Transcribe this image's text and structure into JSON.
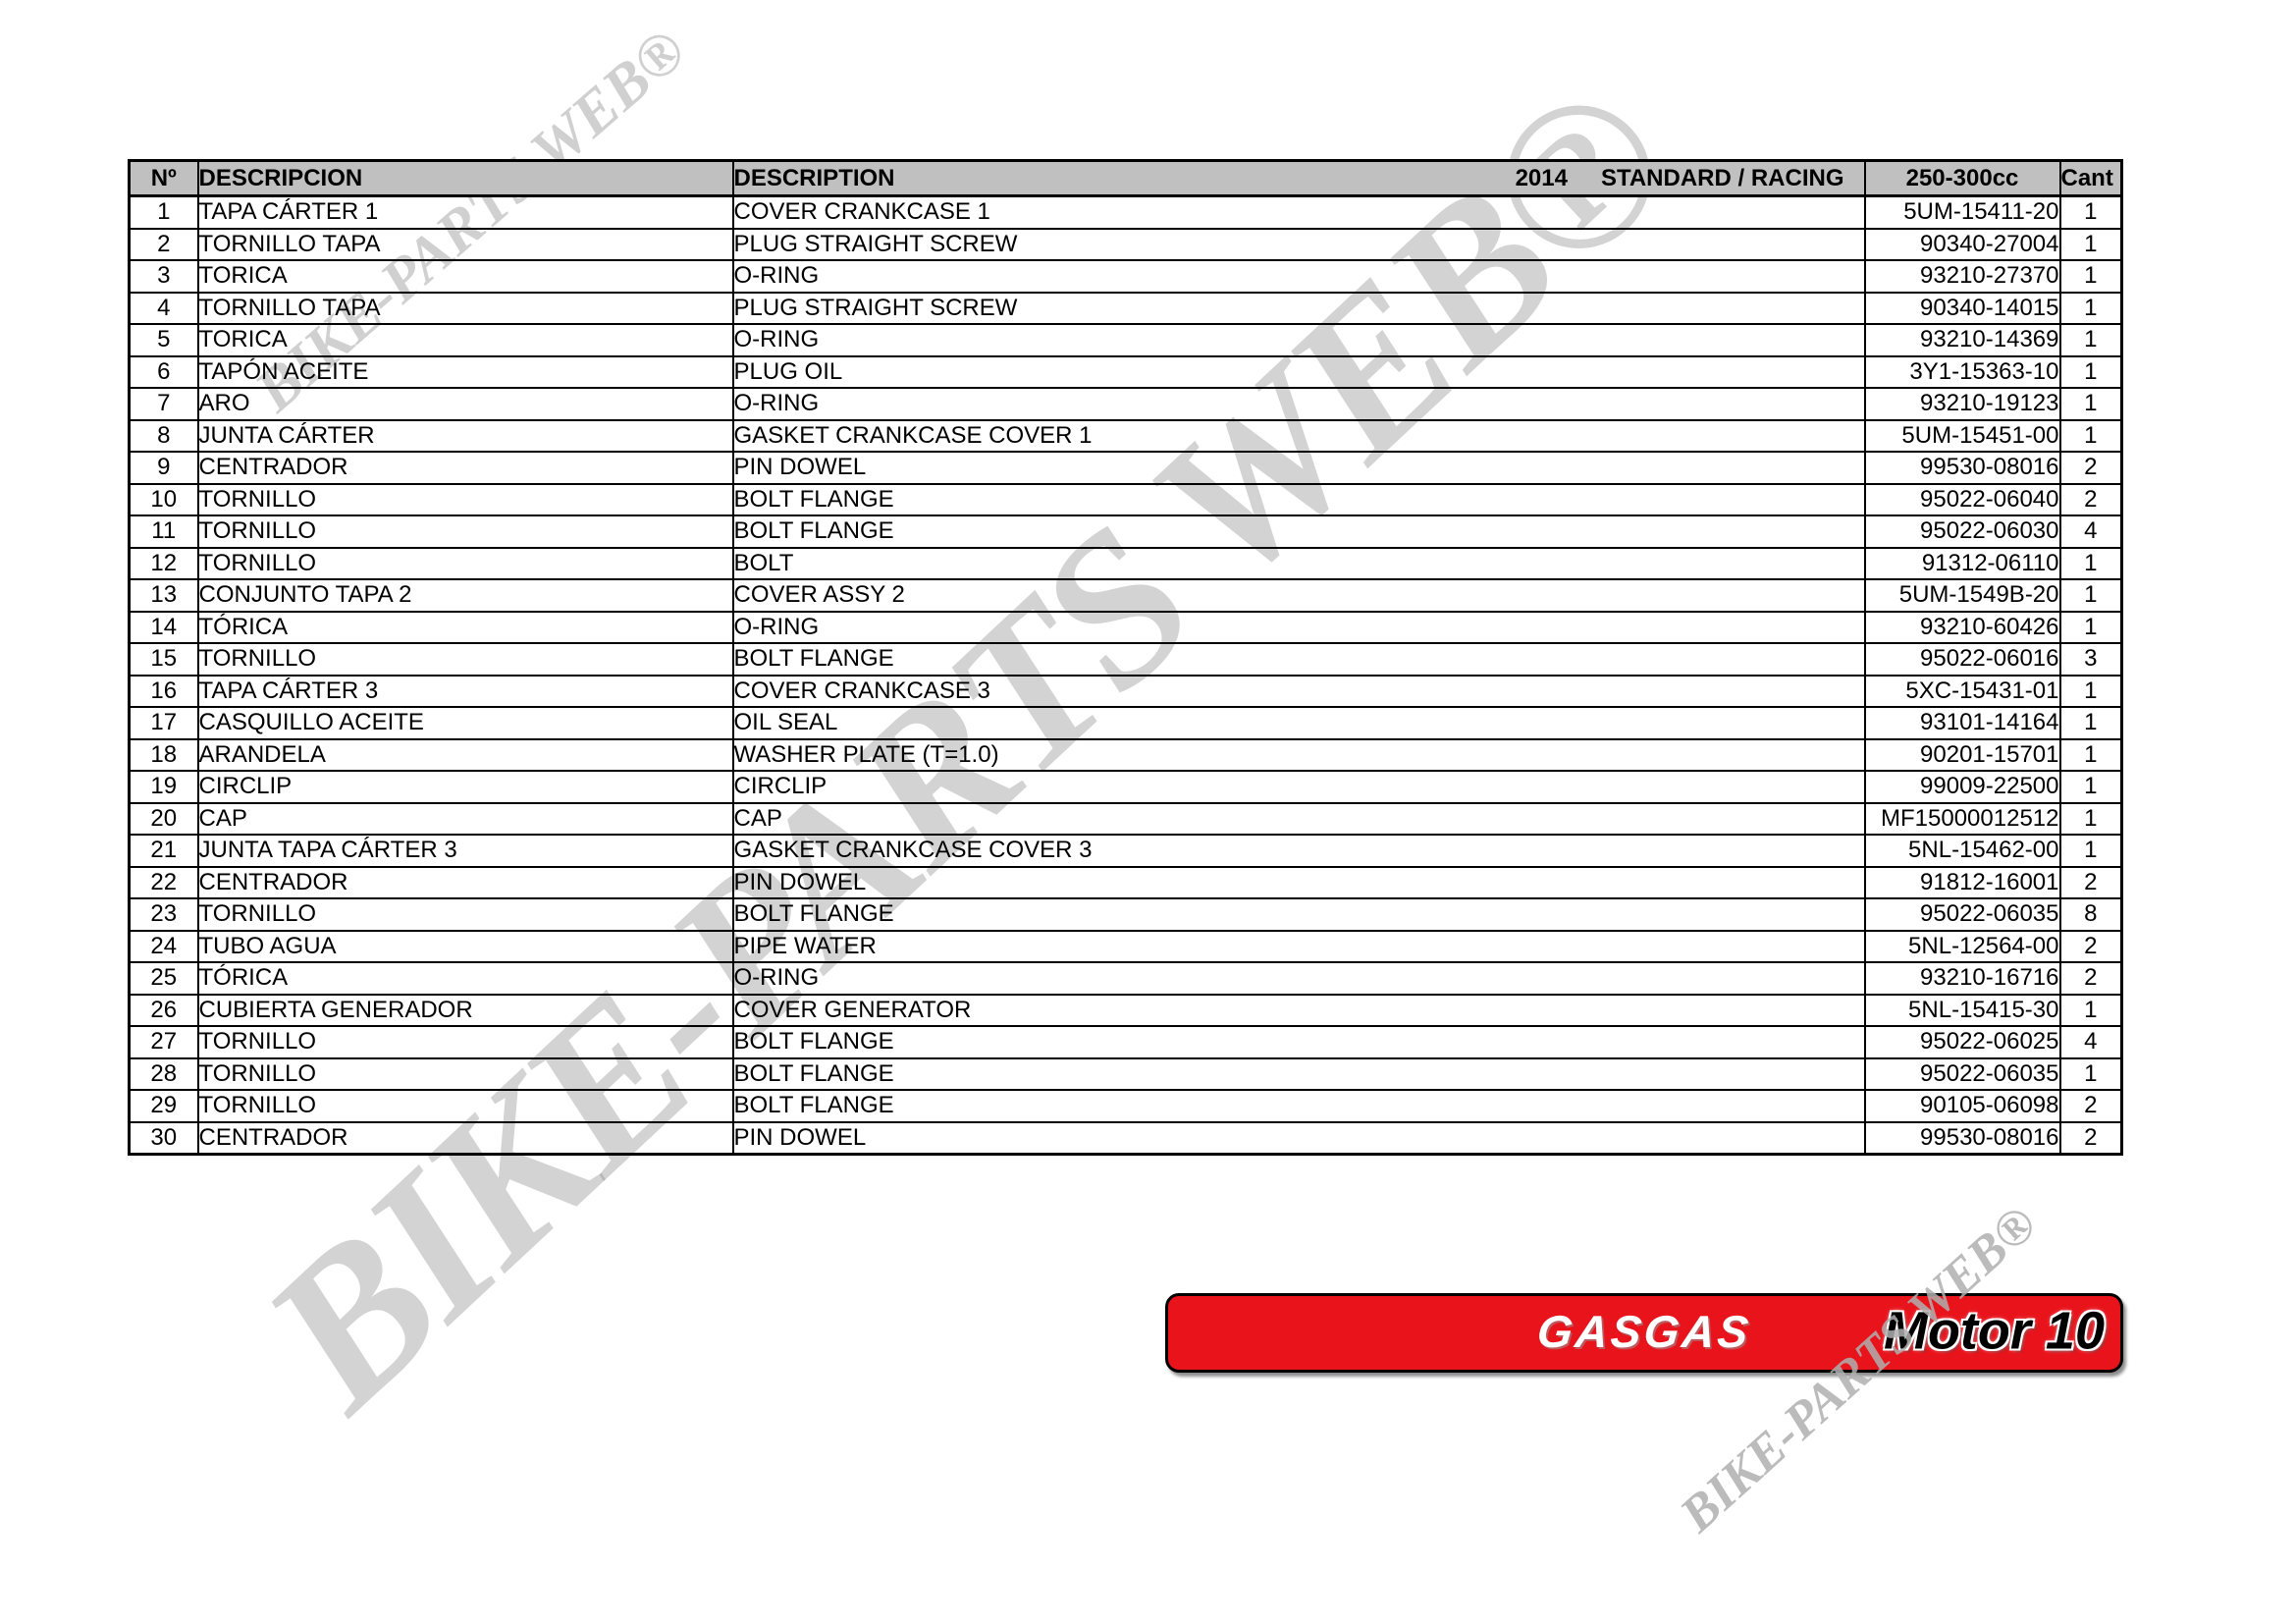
{
  "watermark": {
    "text": "BIKE-PARTS WEB®",
    "color_hex": "#c8c8c8"
  },
  "banner": {
    "brand": "GASGAS",
    "model": "Motor 10",
    "background_hex": "#e8131b",
    "brand_color_hex": "#ffffff",
    "model_color_hex": "#000000"
  },
  "table": {
    "headers": {
      "num": "Nº",
      "descripcion": "DESCRIPCION",
      "description": "DESCRIPTION",
      "year": "2014",
      "variant": "STANDARD / RACING",
      "cc": "250-300cc",
      "qty": "Cant"
    },
    "rows": [
      {
        "num": "1",
        "descripcion": "TAPA CÁRTER 1",
        "description": "COVER CRANKCASE 1",
        "part": "5UM-15411-20",
        "qty": "1"
      },
      {
        "num": "2",
        "descripcion": "TORNILLO TAPA",
        "description": "PLUG STRAIGHT SCREW",
        "part": "90340-27004",
        "qty": "1"
      },
      {
        "num": "3",
        "descripcion": "TORICA",
        "description": "O-RING",
        "part": "93210-27370",
        "qty": "1"
      },
      {
        "num": "4",
        "descripcion": "TORNILLO TAPA",
        "description": "PLUG STRAIGHT SCREW",
        "part": "90340-14015",
        "qty": "1"
      },
      {
        "num": "5",
        "descripcion": "TORICA",
        "description": "O-RING",
        "part": "93210-14369",
        "qty": "1"
      },
      {
        "num": "6",
        "descripcion": "TAPÓN ACEITE",
        "description": "PLUG OIL",
        "part": "3Y1-15363-10",
        "qty": "1"
      },
      {
        "num": "7",
        "descripcion": "ARO",
        "description": "O-RING",
        "part": "93210-19123",
        "qty": "1"
      },
      {
        "num": "8",
        "descripcion": "JUNTA CÁRTER",
        "description": "GASKET CRANKCASE COVER 1",
        "part": "5UM-15451-00",
        "qty": "1"
      },
      {
        "num": "9",
        "descripcion": "CENTRADOR",
        "description": "PIN DOWEL",
        "part": "99530-08016",
        "qty": "2"
      },
      {
        "num": "10",
        "descripcion": "TORNILLO",
        "description": "BOLT FLANGE",
        "part": "95022-06040",
        "qty": "2"
      },
      {
        "num": "11",
        "descripcion": "TORNILLO",
        "description": "BOLT FLANGE",
        "part": "95022-06030",
        "qty": "4"
      },
      {
        "num": "12",
        "descripcion": "TORNILLO",
        "description": "BOLT",
        "part": "91312-06110",
        "qty": "1"
      },
      {
        "num": "13",
        "descripcion": "CONJUNTO TAPA 2",
        "description": "COVER ASSY 2",
        "part": "5UM-1549B-20",
        "qty": "1"
      },
      {
        "num": "14",
        "descripcion": "TÓRICA",
        "description": "O-RING",
        "part": "93210-60426",
        "qty": "1"
      },
      {
        "num": "15",
        "descripcion": "TORNILLO",
        "description": "BOLT FLANGE",
        "part": "95022-06016",
        "qty": "3"
      },
      {
        "num": "16",
        "descripcion": "TAPA CÁRTER 3",
        "description": "COVER CRANKCASE 3",
        "part": "5XC-15431-01",
        "qty": "1"
      },
      {
        "num": "17",
        "descripcion": "CASQUILLO ACEITE",
        "description": "OIL SEAL",
        "part": "93101-14164",
        "qty": "1"
      },
      {
        "num": "18",
        "descripcion": "ARANDELA",
        "description": "WASHER PLATE (T=1.0)",
        "part": "90201-15701",
        "qty": "1"
      },
      {
        "num": "19",
        "descripcion": "CIRCLIP",
        "description": "CIRCLIP",
        "part": "99009-22500",
        "qty": "1"
      },
      {
        "num": "20",
        "descripcion": "CAP",
        "description": "CAP",
        "part": "MF15000012512",
        "qty": "1"
      },
      {
        "num": "21",
        "descripcion": "JUNTA TAPA CÁRTER 3",
        "description": "GASKET CRANKCASE COVER 3",
        "part": "5NL-15462-00",
        "qty": "1"
      },
      {
        "num": "22",
        "descripcion": "CENTRADOR",
        "description": "PIN DOWEL",
        "part": "91812-16001",
        "qty": "2"
      },
      {
        "num": "23",
        "descripcion": "TORNILLO",
        "description": "BOLT FLANGE",
        "part": "95022-06035",
        "qty": "8"
      },
      {
        "num": "24",
        "descripcion": "TUBO AGUA",
        "description": "PIPE WATER",
        "part": "5NL-12564-00",
        "qty": "2"
      },
      {
        "num": "25",
        "descripcion": "TÓRICA",
        "description": "O-RING",
        "part": "93210-16716",
        "qty": "2"
      },
      {
        "num": "26",
        "descripcion": "CUBIERTA GENERADOR",
        "description": "COVER GENERATOR",
        "part": "5NL-15415-30",
        "qty": "1"
      },
      {
        "num": "27",
        "descripcion": "TORNILLO",
        "description": "BOLT FLANGE",
        "part": "95022-06025",
        "qty": "4"
      },
      {
        "num": "28",
        "descripcion": "TORNILLO",
        "description": "BOLT FLANGE",
        "part": "95022-06035",
        "qty": "1"
      },
      {
        "num": "29",
        "descripcion": "TORNILLO",
        "description": "BOLT FLANGE",
        "part": "90105-06098",
        "qty": "2"
      },
      {
        "num": "30",
        "descripcion": "CENTRADOR",
        "description": "PIN DOWEL",
        "part": "99530-08016",
        "qty": "2"
      }
    ]
  }
}
